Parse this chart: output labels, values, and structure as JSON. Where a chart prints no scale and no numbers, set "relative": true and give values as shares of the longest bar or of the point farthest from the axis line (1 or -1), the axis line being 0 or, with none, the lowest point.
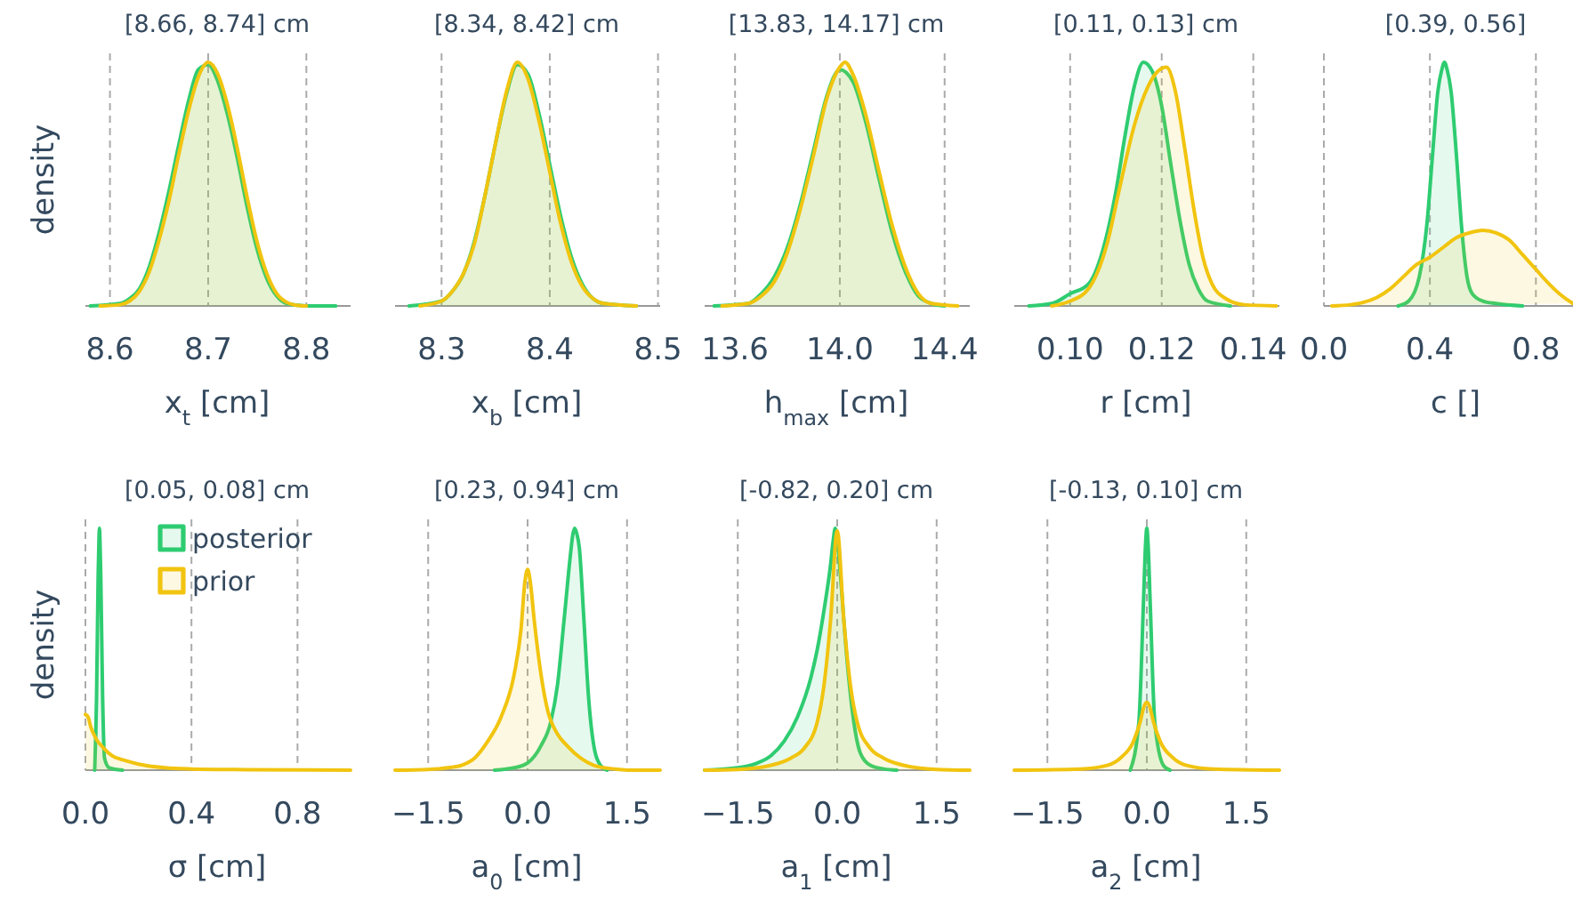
{
  "chart_data": [
    {
      "type": "area",
      "title": "[8.66, 8.74] cm",
      "xlabel": "x$_{t}$ [cm]",
      "ylabel": "density",
      "relative": true,
      "grid": "x",
      "xlim": [
        8.575,
        8.845
      ],
      "xticks": [
        8.6,
        8.7,
        8.8
      ],
      "series": [
        {
          "color": "#2ecc71",
          "x": [
            8.58,
            8.61,
            8.62,
            8.63,
            8.64,
            8.65,
            8.66,
            8.67,
            8.68,
            8.69,
            8.7,
            8.71,
            8.72,
            8.73,
            8.74,
            8.75,
            8.76,
            8.77,
            8.78,
            8.8,
            8.83
          ],
          "values": [
            0,
            0.01,
            0.03,
            0.07,
            0.16,
            0.3,
            0.47,
            0.66,
            0.84,
            0.97,
            0.99,
            0.92,
            0.78,
            0.6,
            0.4,
            0.23,
            0.11,
            0.04,
            0.01,
            0,
            0
          ]
        },
        {
          "color": "#f1c40f",
          "x": [
            8.59,
            8.61,
            8.62,
            8.63,
            8.64,
            8.65,
            8.66,
            8.67,
            8.68,
            8.69,
            8.7,
            8.71,
            8.72,
            8.73,
            8.74,
            8.75,
            8.76,
            8.77,
            8.78,
            8.79,
            8.8
          ],
          "values": [
            0,
            0.005,
            0.02,
            0.06,
            0.14,
            0.27,
            0.43,
            0.62,
            0.8,
            0.94,
            1,
            0.95,
            0.82,
            0.64,
            0.44,
            0.26,
            0.13,
            0.05,
            0.015,
            0.003,
            0
          ]
        }
      ]
    },
    {
      "type": "area",
      "title": "[8.34, 8.42] cm",
      "xlabel": "x$_{b}$ [cm]",
      "relative": true,
      "grid": "x",
      "xlim": [
        8.257,
        8.502
      ],
      "xticks": [
        8.3,
        8.4,
        8.5
      ],
      "series": [
        {
          "color": "#2ecc71",
          "x": [
            8.27,
            8.3,
            8.31,
            8.32,
            8.33,
            8.34,
            8.35,
            8.36,
            8.37,
            8.38,
            8.39,
            8.4,
            8.41,
            8.42,
            8.43,
            8.44,
            8.45,
            8.48
          ],
          "values": [
            0,
            0.02,
            0.06,
            0.13,
            0.26,
            0.45,
            0.67,
            0.87,
            0.99,
            0.95,
            0.79,
            0.58,
            0.37,
            0.2,
            0.09,
            0.03,
            0.01,
            0
          ]
        },
        {
          "color": "#f1c40f",
          "x": [
            8.28,
            8.3,
            8.31,
            8.32,
            8.33,
            8.34,
            8.35,
            8.36,
            8.37,
            8.38,
            8.39,
            8.4,
            8.41,
            8.42,
            8.43,
            8.44,
            8.45,
            8.48
          ],
          "values": [
            0,
            0.02,
            0.06,
            0.13,
            0.25,
            0.45,
            0.67,
            0.88,
            1,
            0.93,
            0.76,
            0.55,
            0.34,
            0.18,
            0.08,
            0.03,
            0.01,
            0
          ]
        }
      ]
    },
    {
      "type": "area",
      "title": "[13.83, 14.17] cm",
      "xlabel": "h$_{max}$ [cm]",
      "relative": true,
      "grid": "x",
      "xlim": [
        13.484,
        14.496
      ],
      "xticks": [
        13.6,
        {
          "value": 14,
          "label": "14.0"
        },
        14.4
      ],
      "series": [
        {
          "color": "#2ecc71",
          "x": [
            13.52,
            13.65,
            13.7,
            13.75,
            13.8,
            13.85,
            13.9,
            13.95,
            14.0,
            14.05,
            14.1,
            14.15,
            14.2,
            14.25,
            14.3,
            14.35,
            14.4
          ],
          "values": [
            0,
            0.01,
            0.05,
            0.12,
            0.24,
            0.42,
            0.64,
            0.86,
            0.97,
            0.92,
            0.75,
            0.52,
            0.3,
            0.14,
            0.04,
            0.01,
            0
          ]
        },
        {
          "color": "#f1c40f",
          "x": [
            13.55,
            13.65,
            13.7,
            13.75,
            13.8,
            13.85,
            13.9,
            13.95,
            14.0,
            14.02,
            14.05,
            14.1,
            14.15,
            14.2,
            14.25,
            14.3,
            14.35,
            14.45
          ],
          "values": [
            0,
            0.01,
            0.04,
            0.1,
            0.22,
            0.4,
            0.62,
            0.85,
            0.98,
            1,
            0.95,
            0.78,
            0.55,
            0.33,
            0.16,
            0.05,
            0.01,
            0
          ]
        }
      ]
    },
    {
      "type": "area",
      "title": "[0.11, 0.13] cm",
      "xlabel": "r [cm]",
      "relative": true,
      "grid": "x",
      "xlim": [
        0.0878,
        0.1457
      ],
      "xticks": [
        {
          "value": 0.1,
          "label": "0.10"
        },
        0.12,
        0.14
      ],
      "series": [
        {
          "color": "#2ecc71",
          "x": [
            0.091,
            0.096,
            0.1,
            0.104,
            0.107,
            0.11,
            0.112,
            0.114,
            0.116,
            0.118,
            0.12,
            0.122,
            0.124,
            0.126,
            0.128,
            0.13,
            0.135
          ],
          "values": [
            0,
            0.01,
            0.05,
            0.09,
            0.22,
            0.47,
            0.7,
            0.9,
            1,
            0.96,
            0.82,
            0.58,
            0.35,
            0.17,
            0.07,
            0.02,
            0
          ]
        },
        {
          "color": "#f1c40f",
          "x": [
            0.096,
            0.1,
            0.104,
            0.108,
            0.111,
            0.114,
            0.117,
            0.119,
            0.121,
            0.123,
            0.125,
            0.127,
            0.129,
            0.131,
            0.134,
            0.138,
            0.145
          ],
          "values": [
            0,
            0.02,
            0.07,
            0.25,
            0.5,
            0.74,
            0.9,
            0.96,
            0.98,
            0.88,
            0.65,
            0.4,
            0.2,
            0.09,
            0.03,
            0.005,
            0
          ]
        }
      ]
    },
    {
      "type": "area",
      "title": "[0.39, 0.56]",
      "xlabel": "c []",
      "relative": true,
      "grid": "x",
      "xlim": [
        0,
        0.94
      ],
      "xticks": [
        {
          "value": 0,
          "label": "0.0"
        },
        0.4,
        0.8
      ],
      "series": [
        {
          "color": "#2ecc71",
          "x": [
            0.28,
            0.32,
            0.36,
            0.39,
            0.41,
            0.43,
            0.445,
            0.455,
            0.465,
            0.48,
            0.5,
            0.52,
            0.54,
            0.56,
            0.6,
            0.65,
            0.75
          ],
          "values": [
            0,
            0.02,
            0.12,
            0.35,
            0.62,
            0.88,
            0.97,
            1,
            0.97,
            0.88,
            0.62,
            0.32,
            0.12,
            0.05,
            0.02,
            0.01,
            0
          ]
        },
        {
          "color": "#f1c40f",
          "x": [
            0.03,
            0.1,
            0.15,
            0.2,
            0.25,
            0.3,
            0.35,
            0.4,
            0.45,
            0.5,
            0.55,
            0.6,
            0.65,
            0.7,
            0.75,
            0.8,
            0.85,
            0.9,
            0.94
          ],
          "values": [
            0,
            0.005,
            0.015,
            0.035,
            0.07,
            0.12,
            0.17,
            0.2,
            0.24,
            0.28,
            0.3,
            0.31,
            0.3,
            0.27,
            0.21,
            0.15,
            0.09,
            0.04,
            0.01
          ]
        }
      ]
    },
    {
      "type": "area",
      "title": "[0.05, 0.08] cm",
      "xlabel": "σ [cm]",
      "ylabel": "density",
      "relative": true,
      "grid": "x",
      "legend": "top right",
      "xlim": [
        0,
        1
      ],
      "xticks": [
        {
          "value": 0,
          "label": "0.0"
        },
        0.4,
        0.8
      ],
      "series": [
        {
          "name": "posterior",
          "color": "#2ecc71",
          "x": [
            0.035,
            0.042,
            0.048,
            0.051,
            0.053,
            0.055,
            0.058,
            0.065,
            0.072,
            0.09,
            0.14
          ],
          "values": [
            0,
            0.3,
            0.8,
            0.95,
            1,
            0.95,
            0.8,
            0.3,
            0.05,
            0.01,
            0
          ]
        },
        {
          "name": "prior",
          "color": "#f1c40f",
          "x": [
            0,
            0.01,
            0.02,
            0.04,
            0.07,
            0.1,
            0.15,
            0.2,
            0.3,
            0.4,
            0.6,
            1
          ],
          "values": [
            0.23,
            0.22,
            0.18,
            0.13,
            0.09,
            0.06,
            0.04,
            0.025,
            0.01,
            0.005,
            0.002,
            0
          ]
        }
      ]
    },
    {
      "type": "area",
      "title": "[0.23, 0.94] cm",
      "xlabel": "a$_{0}$ [cm]",
      "relative": true,
      "grid": "x",
      "xlim": [
        -2,
        2
      ],
      "xticks": [
        {
          "value": -1.5,
          "label": "−1.5"
        },
        {
          "value": 0,
          "label": "0.0"
        },
        1.5
      ],
      "series": [
        {
          "color": "#2ecc71",
          "x": [
            -0.5,
            -0.2,
            0,
            0.2,
            0.35,
            0.45,
            0.55,
            0.65,
            0.68,
            0.71,
            0.74,
            0.78,
            0.85,
            0.92,
            1,
            1.1,
            1.2
          ],
          "values": [
            0,
            0.01,
            0.03,
            0.1,
            0.2,
            0.35,
            0.62,
            0.9,
            0.97,
            1,
            0.98,
            0.92,
            0.62,
            0.3,
            0.1,
            0.02,
            0
          ]
        },
        {
          "color": "#f1c40f",
          "x": [
            -2,
            -1.5,
            -1.2,
            -1,
            -0.8,
            -0.6,
            -0.4,
            -0.2,
            -0.1,
            -0.04,
            0,
            0.04,
            0.1,
            0.2,
            0.3,
            0.45,
            0.6,
            0.8,
            1,
            1.3,
            1.5,
            2
          ],
          "values": [
            0,
            0.003,
            0.01,
            0.02,
            0.05,
            0.12,
            0.22,
            0.4,
            0.58,
            0.78,
            0.83,
            0.78,
            0.62,
            0.4,
            0.25,
            0.15,
            0.1,
            0.05,
            0.02,
            0.005,
            0,
            0
          ]
        }
      ]
    },
    {
      "type": "area",
      "title": "[-0.82, 0.20] cm",
      "xlabel": "a$_{1}$ [cm]",
      "relative": true,
      "grid": "x",
      "xlim": [
        -2,
        2
      ],
      "xticks": [
        {
          "value": -1.5,
          "label": "−1.5"
        },
        {
          "value": 0,
          "label": "0.0"
        },
        1.5
      ],
      "series": [
        {
          "color": "#2ecc71",
          "x": [
            -2,
            -1.5,
            -1.2,
            -1,
            -0.8,
            -0.6,
            -0.4,
            -0.3,
            -0.2,
            -0.1,
            -0.06,
            -0.03,
            0.01,
            0.05,
            0.15,
            0.25,
            0.35,
            0.5,
            0.7,
            0.9
          ],
          "values": [
            0,
            0.01,
            0.03,
            0.06,
            0.12,
            0.22,
            0.38,
            0.5,
            0.66,
            0.85,
            0.95,
            1,
            0.93,
            0.8,
            0.45,
            0.2,
            0.07,
            0.02,
            0.005,
            0
          ]
        },
        {
          "color": "#f1c40f",
          "x": [
            -2,
            -1.5,
            -1,
            -0.7,
            -0.5,
            -0.3,
            -0.2,
            -0.1,
            0,
            0.1,
            0.2,
            0.3,
            0.5,
            0.7,
            1,
            1.5,
            2
          ],
          "values": [
            0,
            0.003,
            0.02,
            0.05,
            0.09,
            0.2,
            0.35,
            0.62,
            0.99,
            0.62,
            0.35,
            0.2,
            0.09,
            0.05,
            0.02,
            0.003,
            0
          ]
        }
      ]
    },
    {
      "type": "area",
      "title": "[-0.13, 0.10] cm",
      "xlabel": "a$_{2}$ [cm]",
      "relative": true,
      "grid": "x",
      "xlim": [
        -2,
        2
      ],
      "xticks": [
        {
          "value": -1.5,
          "label": "−1.5"
        },
        {
          "value": 0,
          "label": "0.0"
        },
        1.5
      ],
      "series": [
        {
          "color": "#2ecc71",
          "x": [
            -0.25,
            -0.12,
            -0.05,
            -0.02,
            0,
            0.02,
            0.05,
            0.12,
            0.25,
            0.35
          ],
          "values": [
            0,
            0.2,
            0.7,
            0.93,
            1,
            0.93,
            0.7,
            0.2,
            0.02,
            0
          ]
        },
        {
          "color": "#f1c40f",
          "x": [
            -2,
            -1,
            -0.6,
            -0.4,
            -0.2,
            -0.1,
            -0.04,
            0,
            0.04,
            0.1,
            0.2,
            0.4,
            0.6,
            1,
            2
          ],
          "values": [
            0,
            0.005,
            0.02,
            0.05,
            0.12,
            0.2,
            0.265,
            0.28,
            0.265,
            0.2,
            0.12,
            0.05,
            0.02,
            0.005,
            0
          ]
        }
      ]
    }
  ]
}
